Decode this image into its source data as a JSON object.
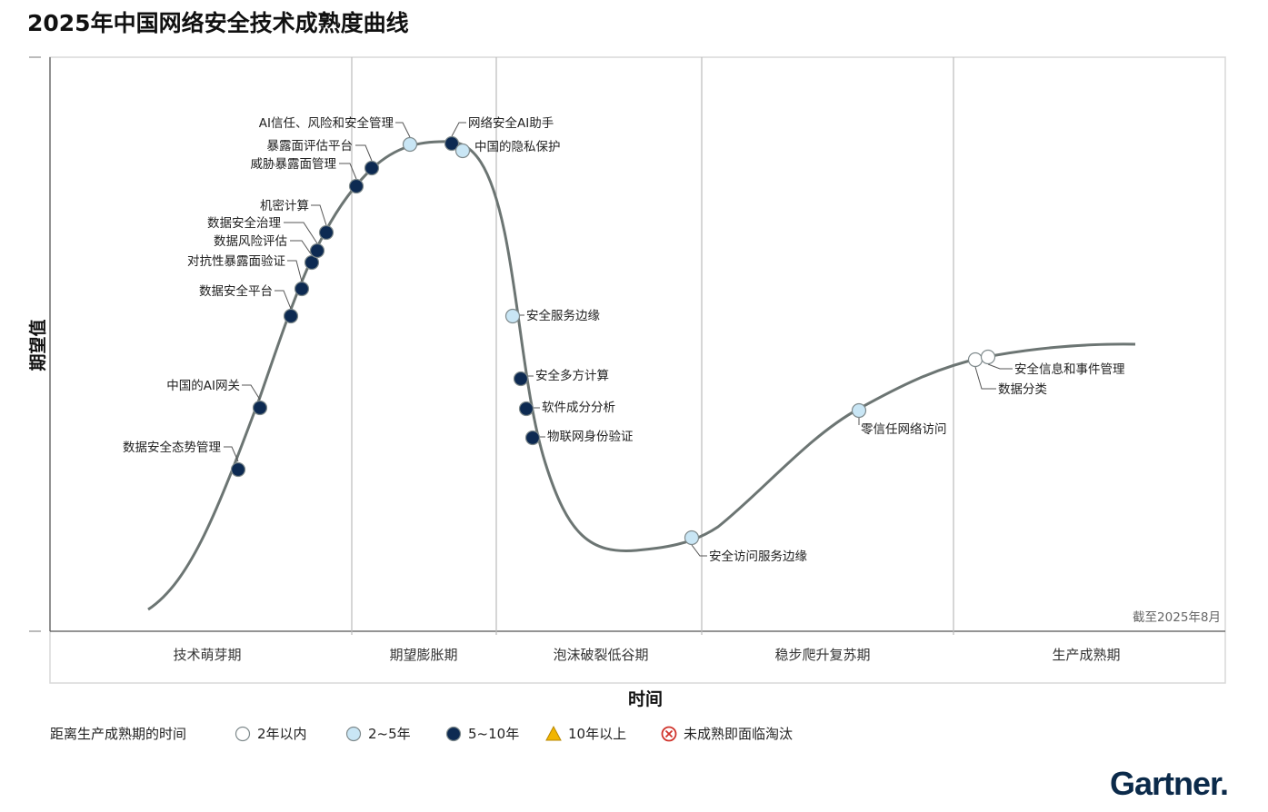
{
  "chart_data": {
    "type": "hype-cycle",
    "title": "2025年中国网络安全技术成熟度曲线",
    "ylabel": "期望值",
    "xlabel": "时间",
    "as_of": "截至2025年8月",
    "phases": [
      "技术萌芽期",
      "期望膨胀期",
      "泡沫破裂低谷期",
      "稳步爬升复苏期",
      "生产成熟期"
    ],
    "legend": {
      "title": "距离生产成熟期的时间",
      "items": [
        {
          "label": "2年以内",
          "category": "lt2"
        },
        {
          "label": "2~5年",
          "category": "2to5"
        },
        {
          "label": "5~10年",
          "category": "5to10"
        },
        {
          "label": "10年以上",
          "category": "gt10"
        },
        {
          "label": "未成熟即面临淘汰",
          "category": "obsolete"
        }
      ]
    },
    "colors": {
      "lt2": "#ffffff",
      "2to5": "#c9e6f5",
      "5to10": "#0d2a52",
      "gt10": "#f2b500",
      "obsolete": "#d0342c",
      "curve": "#6c7573",
      "marker_stroke": "#7f8a8c"
    },
    "points": [
      {
        "name": "数据安全态势管理",
        "category": "5to10"
      },
      {
        "name": "中国的AI网关",
        "category": "5to10"
      },
      {
        "name": "数据安全平台",
        "category": "5to10"
      },
      {
        "name": "对抗性暴露面验证",
        "category": "5to10"
      },
      {
        "name": "数据风险评估",
        "category": "5to10"
      },
      {
        "name": "数据安全治理",
        "category": "5to10"
      },
      {
        "name": "机密计算",
        "category": "5to10"
      },
      {
        "name": "威胁暴露面管理",
        "category": "5to10"
      },
      {
        "name": "暴露面评估平台",
        "category": "5to10"
      },
      {
        "name": "AI信任、风险和安全管理",
        "category": "2to5"
      },
      {
        "name": "网络安全AI助手",
        "category": "5to10"
      },
      {
        "name": "中国的隐私保护",
        "category": "2to5"
      },
      {
        "name": "安全服务边缘",
        "category": "2to5"
      },
      {
        "name": "安全多方计算",
        "category": "5to10"
      },
      {
        "name": "软件成分分析",
        "category": "5to10"
      },
      {
        "name": "物联网身份验证",
        "category": "5to10"
      },
      {
        "name": "安全访问服务边缘",
        "category": "2to5"
      },
      {
        "name": "零信任网络访问",
        "category": "2to5"
      },
      {
        "name": "数据分类",
        "category": "lt2"
      },
      {
        "name": "安全信息和事件管理",
        "category": "lt2"
      }
    ]
  },
  "brand": {
    "name": "Gartner."
  }
}
